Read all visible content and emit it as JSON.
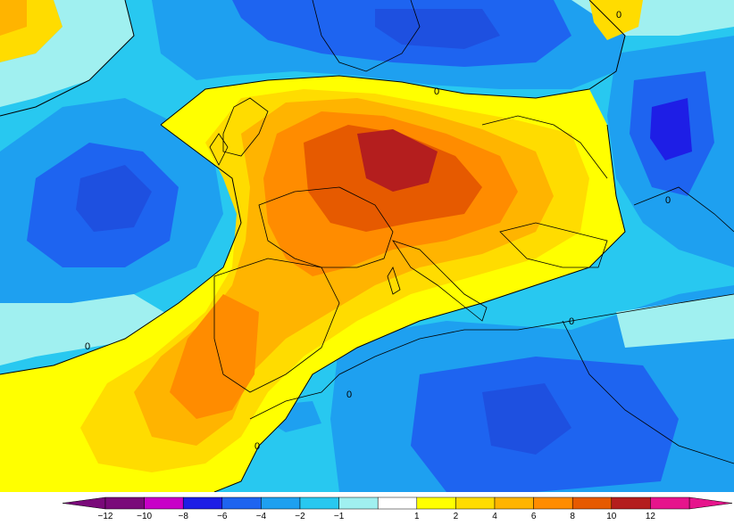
{
  "map": {
    "contour_labels": [
      "0",
      "0",
      "0",
      "0",
      "0",
      "0",
      "0"
    ]
  },
  "legend": {
    "entries": [
      {
        "label": "−12",
        "color": "#7a0a7a"
      },
      {
        "label": "−10",
        "color": "#c800c8"
      },
      {
        "label": "−8",
        "color": "#1e1ee6"
      },
      {
        "label": "−6",
        "color": "#1e64f0"
      },
      {
        "label": "−4",
        "color": "#1ea0f0"
      },
      {
        "label": "−2",
        "color": "#28c8f0"
      },
      {
        "label": "−1",
        "color": "#a0f0f0"
      },
      {
        "label": "",
        "color": "#ffffff"
      },
      {
        "label": "1",
        "color": "#ffff00"
      },
      {
        "label": "2",
        "color": "#ffdc00"
      },
      {
        "label": "4",
        "color": "#ffb400"
      },
      {
        "label": "6",
        "color": "#ff8c00"
      },
      {
        "label": "8",
        "color": "#e65a00"
      },
      {
        "label": "10",
        "color": "#b41e1e"
      },
      {
        "label": "12",
        "color": "#e6148c"
      }
    ],
    "low_arrow_color": "#7a0a7a",
    "high_arrow_color": "#e6148c"
  },
  "colors": {
    "strong_negative": "#1e64f0",
    "moderate_negative": "#1ea0f0",
    "weak_negative": "#28c8f0",
    "near_zero_negative": "#a0f0f0",
    "near_zero_white": "#ffffff",
    "weak_positive": "#ffff00",
    "positive_2": "#ffdc00",
    "positive_4": "#ffb400",
    "positive_6": "#ff8c00",
    "positive_8": "#e65a00",
    "positive_10": "#b41e1e",
    "land_border": "#000000"
  }
}
